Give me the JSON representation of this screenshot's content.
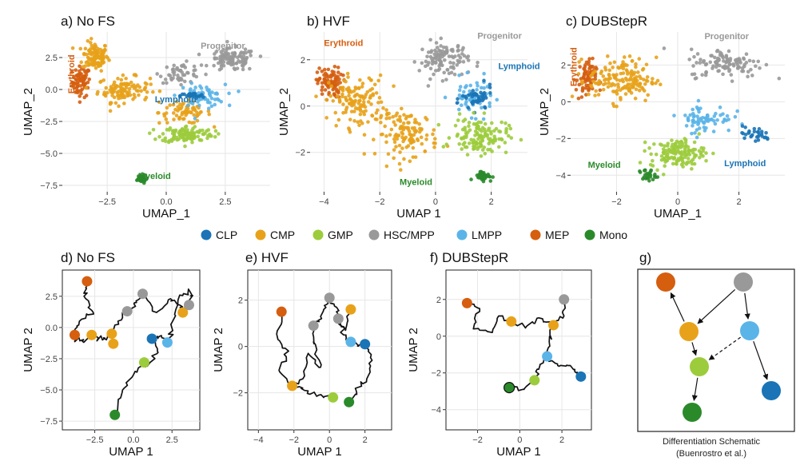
{
  "colors": {
    "CLP": "#1a74b6",
    "CMP": "#e8a21a",
    "GMP": "#9ccc3c",
    "HSC/MPP": "#999999",
    "LMPP": "#5ab4e8",
    "MEP": "#d55e0f",
    "Mono": "#2a8a2a"
  },
  "legend": {
    "items": [
      "CLP",
      "CMP",
      "GMP",
      "HSC/MPP",
      "LMPP",
      "MEP",
      "Mono"
    ]
  },
  "schematic": {
    "title": "g)",
    "caption_line1": "Differentiation Schematic",
    "caption_line2": "(Buenrostro et al.)",
    "nodes": [
      "MEP",
      "HSC/MPP",
      "CMP",
      "LMPP",
      "GMP",
      "CLP",
      "Mono"
    ],
    "edges": [
      {
        "from": "HSC/MPP",
        "to": "CMP",
        "dashed": false
      },
      {
        "from": "HSC/MPP",
        "to": "LMPP",
        "dashed": false
      },
      {
        "from": "CMP",
        "to": "MEP",
        "dashed": false
      },
      {
        "from": "CMP",
        "to": "GMP",
        "dashed": false
      },
      {
        "from": "LMPP",
        "to": "GMP",
        "dashed": true
      },
      {
        "from": "LMPP",
        "to": "CLP",
        "dashed": false
      },
      {
        "from": "GMP",
        "to": "Mono",
        "dashed": false
      }
    ]
  },
  "chart_data": [
    {
      "type": "scatter",
      "title": "a) No FS",
      "xlabel": "UMAP_1",
      "ylabel": "UMAP_2",
      "xlim": [
        -4.4,
        4.4
      ],
      "ylim": [
        -8.0,
        4.5
      ],
      "xticks": [
        -2.5,
        0.0,
        2.5
      ],
      "yticks": [
        2.5,
        0.0,
        -2.5,
        -5.0,
        -7.5
      ],
      "xtick_labels": [
        "−2.5",
        "0.0",
        "2.5"
      ],
      "ytick_labels": [
        "2.5",
        "0.0",
        "−2.5",
        "−5.0",
        "−7.5"
      ],
      "clusters": [
        {
          "type": "MEP",
          "cx": -3.6,
          "cy": 0.6,
          "sx": 0.35,
          "sy": 1.1,
          "n": 70
        },
        {
          "type": "CMP",
          "cx": -3.0,
          "cy": 2.6,
          "sx": 0.5,
          "sy": 1.0,
          "n": 110
        },
        {
          "type": "CMP",
          "cx": -1.8,
          "cy": 0.0,
          "sx": 1.0,
          "sy": 0.9,
          "n": 110
        },
        {
          "type": "CMP",
          "cx": 0.8,
          "cy": -1.8,
          "sx": 1.0,
          "sy": 0.8,
          "n": 70
        },
        {
          "type": "HSC/MPP",
          "cx": 2.8,
          "cy": 2.3,
          "sx": 0.9,
          "sy": 0.8,
          "n": 110
        },
        {
          "type": "HSC/MPP",
          "cx": 0.6,
          "cy": 1.3,
          "sx": 0.8,
          "sy": 0.7,
          "n": 50
        },
        {
          "type": "LMPP",
          "cx": 1.5,
          "cy": -0.5,
          "sx": 0.9,
          "sy": 0.8,
          "n": 60
        },
        {
          "type": "CLP",
          "cx": 1.1,
          "cy": -0.5,
          "sx": 0.45,
          "sy": 0.2,
          "n": 30
        },
        {
          "type": "GMP",
          "cx": 0.9,
          "cy": -3.5,
          "sx": 1.0,
          "sy": 0.6,
          "n": 120
        },
        {
          "type": "Mono",
          "cx": -1.1,
          "cy": -7.0,
          "sx": 0.25,
          "sy": 0.3,
          "n": 35
        }
      ],
      "annotations": [
        {
          "text": "Progenitor",
          "x": 2.4,
          "y": 3.2,
          "color": "#999999",
          "rotate": 0
        },
        {
          "text": "Erythroid",
          "x": -3.9,
          "y": 1.2,
          "color": "#d55e0f",
          "rotate": -90
        },
        {
          "text": "Lymphoid",
          "x": 0.4,
          "y": -1.0,
          "color": "#1a74b6",
          "rotate": 0
        },
        {
          "text": "Myeloid",
          "x": -0.5,
          "y": -7.0,
          "color": "#2a8a2a",
          "rotate": 0
        }
      ]
    },
    {
      "type": "scatter",
      "title": "b) HVF",
      "xlabel": "UMAP  1",
      "ylabel": "UMAP_2",
      "xlim": [
        -4.5,
        3.3
      ],
      "ylim": [
        -3.7,
        3.2
      ],
      "xticks": [
        -4,
        -2,
        0,
        2
      ],
      "yticks": [
        2,
        0,
        -2
      ],
      "xtick_labels": [
        "−4",
        "−2",
        "0",
        "2"
      ],
      "ytick_labels": [
        "2",
        "0",
        "−2"
      ],
      "clusters": [
        {
          "type": "MEP",
          "cx": -3.8,
          "cy": 1.0,
          "sx": 0.4,
          "sy": 0.6,
          "n": 90
        },
        {
          "type": "CMP",
          "cx": -2.8,
          "cy": 0.2,
          "sx": 0.9,
          "sy": 1.0,
          "n": 130
        },
        {
          "type": "CMP",
          "cx": -1.0,
          "cy": -1.2,
          "sx": 1.0,
          "sy": 0.9,
          "n": 120
        },
        {
          "type": "HSC/MPP",
          "cx": 0.3,
          "cy": 2.0,
          "sx": 0.8,
          "sy": 0.7,
          "n": 110
        },
        {
          "type": "LMPP",
          "cx": 1.3,
          "cy": 0.4,
          "sx": 0.7,
          "sy": 0.7,
          "n": 60
        },
        {
          "type": "CLP",
          "cx": 1.5,
          "cy": 0.3,
          "sx": 0.5,
          "sy": 0.5,
          "n": 45
        },
        {
          "type": "GMP",
          "cx": 1.6,
          "cy": -1.3,
          "sx": 0.9,
          "sy": 0.7,
          "n": 130
        },
        {
          "type": "Mono",
          "cx": 1.7,
          "cy": -3.0,
          "sx": 0.3,
          "sy": 0.2,
          "n": 35
        }
      ],
      "annotations": [
        {
          "text": "Erythroid",
          "x": -3.3,
          "y": 2.6,
          "color": "#d55e0f",
          "rotate": 0
        },
        {
          "text": "Progenitor",
          "x": 2.3,
          "y": 2.9,
          "color": "#999999",
          "rotate": 0
        },
        {
          "text": "Lymphoid",
          "x": 3.0,
          "y": 1.6,
          "color": "#1a74b6",
          "rotate": 0
        },
        {
          "text": "Myeloid",
          "x": -0.7,
          "y": -3.4,
          "color": "#2a8a2a",
          "rotate": 0
        }
      ]
    },
    {
      "type": "scatter",
      "title": "c) DUBStepR",
      "xlabel": "UMAP_1",
      "ylabel": "UMAP_2",
      "xlim": [
        -3.5,
        3.5
      ],
      "ylim": [
        -4.9,
        3.8
      ],
      "xticks": [
        -2,
        0,
        2
      ],
      "yticks": [
        2,
        0,
        -2,
        -4
      ],
      "xtick_labels": [
        "−2",
        "0",
        "2"
      ],
      "ytick_labels": [
        "2",
        "0",
        "−2",
        "−4"
      ],
      "clusters": [
        {
          "type": "MEP",
          "cx": -3.0,
          "cy": 1.2,
          "sx": 0.3,
          "sy": 1.0,
          "n": 70
        },
        {
          "type": "CMP",
          "cx": -1.8,
          "cy": 1.2,
          "sx": 1.0,
          "sy": 1.1,
          "n": 160
        },
        {
          "type": "HSC/MPP",
          "cx": 1.6,
          "cy": 2.1,
          "sx": 1.1,
          "sy": 0.7,
          "n": 110
        },
        {
          "type": "LMPP",
          "cx": 0.9,
          "cy": -0.9,
          "sx": 0.8,
          "sy": 0.7,
          "n": 70
        },
        {
          "type": "CLP",
          "cx": 2.5,
          "cy": -1.8,
          "sx": 0.5,
          "sy": 0.4,
          "n": 30
        },
        {
          "type": "GMP",
          "cx": 0.0,
          "cy": -2.8,
          "sx": 0.8,
          "sy": 0.7,
          "n": 140
        },
        {
          "type": "Mono",
          "cx": -1.0,
          "cy": -4.0,
          "sx": 0.25,
          "sy": 0.3,
          "n": 25
        }
      ],
      "annotations": [
        {
          "text": "Progenitor",
          "x": 1.6,
          "y": 3.4,
          "color": "#999999",
          "rotate": 0
        },
        {
          "text": "Erythroid",
          "x": -3.3,
          "y": 1.9,
          "color": "#d55e0f",
          "rotate": -90
        },
        {
          "text": "Myeloid",
          "x": -2.4,
          "y": -3.6,
          "color": "#2a8a2a",
          "rotate": 0
        },
        {
          "text": "Lymphoid",
          "x": 2.2,
          "y": -3.5,
          "color": "#1a74b6",
          "rotate": 0
        }
      ]
    },
    {
      "type": "line",
      "title": "d) No FS",
      "xlabel": "UMAP 1",
      "ylabel": "UMAP 2",
      "xlim": [
        -4.6,
        4.3
      ],
      "ylim": [
        -8.2,
        4.6
      ],
      "xticks": [
        -2.5,
        0.0,
        2.5
      ],
      "yticks": [
        2.5,
        0.0,
        -2.5,
        -5.0,
        -7.5
      ],
      "xtick_labels": [
        "−2.5",
        "0.0",
        "2.5"
      ],
      "ytick_labels": [
        "2.5",
        "0.0",
        "−2.5",
        "−5.0",
        "−7.5"
      ],
      "nodes": [
        {
          "type": "MEP",
          "x": -3.0,
          "y": 3.7
        },
        {
          "type": "MEP",
          "x": -3.8,
          "y": -0.6
        },
        {
          "type": "CMP",
          "x": -2.7,
          "y": -0.6
        },
        {
          "type": "CMP",
          "x": -1.4,
          "y": -0.5
        },
        {
          "type": "CMP",
          "x": -1.3,
          "y": -1.3
        },
        {
          "type": "CMP",
          "x": 3.2,
          "y": 1.2
        },
        {
          "type": "HSC/MPP",
          "x": -0.4,
          "y": 1.3
        },
        {
          "type": "HSC/MPP",
          "x": 0.6,
          "y": 2.7
        },
        {
          "type": "HSC/MPP",
          "x": 3.6,
          "y": 1.8
        },
        {
          "type": "CLP",
          "x": 1.2,
          "y": -0.9
        },
        {
          "type": "LMPP",
          "x": 2.2,
          "y": -1.2
        },
        {
          "type": "GMP",
          "x": 0.7,
          "y": -2.8
        },
        {
          "type": "Mono",
          "x": -1.2,
          "y": -7.0
        }
      ],
      "paths": [
        [
          [
            -3.8,
            -0.6
          ],
          [
            -3.5,
            0.5
          ],
          [
            -2.6,
            1.2
          ],
          [
            -3.2,
            2.5
          ],
          [
            -3.0,
            3.7
          ]
        ],
        [
          [
            -3.8,
            -0.6
          ],
          [
            -3.3,
            -1.1
          ],
          [
            -2.7,
            -0.6
          ],
          [
            -2.0,
            -1.0
          ],
          [
            -1.4,
            -0.5
          ],
          [
            -1.3,
            -1.3
          ]
        ],
        [
          [
            -1.4,
            -0.5
          ],
          [
            -1.0,
            0.5
          ],
          [
            -0.4,
            1.3
          ],
          [
            0.2,
            2.0
          ],
          [
            0.6,
            2.7
          ]
        ],
        [
          [
            0.6,
            2.7
          ],
          [
            1.5,
            1.2
          ],
          [
            2.4,
            2.3
          ],
          [
            3.0,
            1.8
          ],
          [
            3.2,
            1.2
          ]
        ],
        [
          [
            3.2,
            1.2
          ],
          [
            3.6,
            1.8
          ],
          [
            3.7,
            2.8
          ],
          [
            3.0,
            2.6
          ],
          [
            2.5,
            0.4
          ],
          [
            2.2,
            -1.2
          ]
        ],
        [
          [
            2.2,
            -1.2
          ],
          [
            1.7,
            -0.7
          ],
          [
            1.2,
            -0.9
          ]
        ],
        [
          [
            1.2,
            -0.9
          ],
          [
            1.6,
            -2.0
          ],
          [
            0.9,
            -3.1
          ],
          [
            0.7,
            -2.8
          ]
        ],
        [
          [
            0.7,
            -2.8
          ],
          [
            0.0,
            -3.8
          ],
          [
            -0.7,
            -5.0
          ],
          [
            -1.2,
            -7.0
          ]
        ]
      ]
    },
    {
      "type": "line",
      "title": "e) HVF",
      "xlabel": "UMAP 1",
      "ylabel": "UMAP 2",
      "xlim": [
        -4.6,
        3.5
      ],
      "ylim": [
        -3.6,
        3.3
      ],
      "xticks": [
        -4,
        -2,
        0,
        2
      ],
      "yticks": [
        2,
        0,
        -2
      ],
      "xtick_labels": [
        "−4",
        "−2",
        "0",
        "2"
      ],
      "ytick_labels": [
        "2",
        "0",
        "−2"
      ],
      "nodes": [
        {
          "type": "MEP",
          "x": -2.7,
          "y": 1.5
        },
        {
          "type": "CMP",
          "x": -2.1,
          "y": -1.7
        },
        {
          "type": "CMP",
          "x": 1.2,
          "y": 1.6
        },
        {
          "type": "HSC/MPP",
          "x": -0.9,
          "y": 0.9
        },
        {
          "type": "HSC/MPP",
          "x": 0.0,
          "y": 2.1
        },
        {
          "type": "HSC/MPP",
          "x": 0.5,
          "y": 1.2
        },
        {
          "type": "LMPP",
          "x": 1.2,
          "y": 0.2
        },
        {
          "type": "CLP",
          "x": 2.0,
          "y": 0.1
        },
        {
          "type": "GMP",
          "x": 0.2,
          "y": -2.2
        },
        {
          "type": "Mono",
          "x": 1.1,
          "y": -2.4
        }
      ],
      "paths": [
        [
          [
            -2.7,
            1.5
          ],
          [
            -2.9,
            0.3
          ],
          [
            -2.3,
            -0.2
          ],
          [
            -2.8,
            -1.1
          ],
          [
            -2.1,
            -1.7
          ]
        ],
        [
          [
            -2.1,
            -1.7
          ],
          [
            -1.5,
            -1.4
          ],
          [
            -1.2,
            -0.3
          ],
          [
            -0.5,
            -0.9
          ],
          [
            -0.9,
            0.2
          ],
          [
            -0.9,
            0.9
          ]
        ],
        [
          [
            -0.9,
            0.9
          ],
          [
            -0.5,
            1.3
          ],
          [
            -0.2,
            1.8
          ],
          [
            0.0,
            2.1
          ]
        ],
        [
          [
            0.0,
            2.1
          ],
          [
            0.4,
            1.7
          ],
          [
            0.5,
            1.2
          ],
          [
            0.9,
            0.7
          ],
          [
            1.2,
            1.6
          ]
        ],
        [
          [
            0.5,
            1.2
          ],
          [
            0.8,
            0.5
          ],
          [
            1.2,
            0.2
          ],
          [
            2.0,
            0.1
          ]
        ],
        [
          [
            2.0,
            0.1
          ],
          [
            2.4,
            -0.6
          ],
          [
            2.1,
            -1.4
          ],
          [
            1.5,
            -1.9
          ],
          [
            1.1,
            -2.4
          ]
        ],
        [
          [
            -2.1,
            -1.7
          ],
          [
            -1.4,
            -1.9
          ],
          [
            -0.6,
            -2.1
          ],
          [
            0.2,
            -2.2
          ]
        ]
      ]
    },
    {
      "type": "line",
      "title": "f) DUBStepR",
      "xlabel": "UMAP 1",
      "ylabel": "UMAP 2",
      "xlim": [
        -3.5,
        3.4
      ],
      "ylim": [
        -5.1,
        3.6
      ],
      "xticks": [
        -2,
        0,
        2
      ],
      "yticks": [
        2,
        0,
        -2,
        -4
      ],
      "xtick_labels": [
        "−2",
        "0",
        "2"
      ],
      "ytick_labels": [
        "2",
        "0",
        "−2",
        "−4"
      ],
      "nodes": [
        {
          "type": "MEP",
          "x": -2.5,
          "y": 1.8
        },
        {
          "type": "CMP",
          "x": -0.4,
          "y": 0.8
        },
        {
          "type": "CMP",
          "x": 1.6,
          "y": 0.6
        },
        {
          "type": "HSC/MPP",
          "x": 2.1,
          "y": 2.0
        },
        {
          "type": "LMPP",
          "x": 1.3,
          "y": -1.1
        },
        {
          "type": "CLP",
          "x": 2.9,
          "y": -2.2
        },
        {
          "type": "GMP",
          "x": 0.7,
          "y": -2.4
        },
        {
          "type": "Mono",
          "x": -0.5,
          "y": -2.8
        }
      ],
      "paths": [
        [
          [
            -2.5,
            1.8
          ],
          [
            -1.9,
            1.5
          ],
          [
            -2.2,
            0.4
          ],
          [
            -1.3,
            0.2
          ],
          [
            -1.0,
            1.1
          ],
          [
            -0.4,
            0.8
          ]
        ],
        [
          [
            -0.4,
            0.8
          ],
          [
            0.3,
            0.5
          ],
          [
            0.9,
            1.0
          ],
          [
            1.6,
            0.6
          ]
        ],
        [
          [
            1.6,
            0.6
          ],
          [
            2.1,
            1.1
          ],
          [
            2.1,
            2.0
          ]
        ],
        [
          [
            1.6,
            0.6
          ],
          [
            1.4,
            -0.3
          ],
          [
            1.3,
            -1.1
          ]
        ],
        [
          [
            1.3,
            -1.1
          ],
          [
            1.8,
            -1.6
          ],
          [
            2.4,
            -1.6
          ],
          [
            2.9,
            -2.2
          ]
        ],
        [
          [
            1.3,
            -1.1
          ],
          [
            0.9,
            -1.8
          ],
          [
            0.7,
            -2.4
          ]
        ],
        [
          [
            0.7,
            -2.4
          ],
          [
            0.2,
            -2.9
          ],
          [
            -0.5,
            -2.8
          ]
        ]
      ]
    }
  ]
}
